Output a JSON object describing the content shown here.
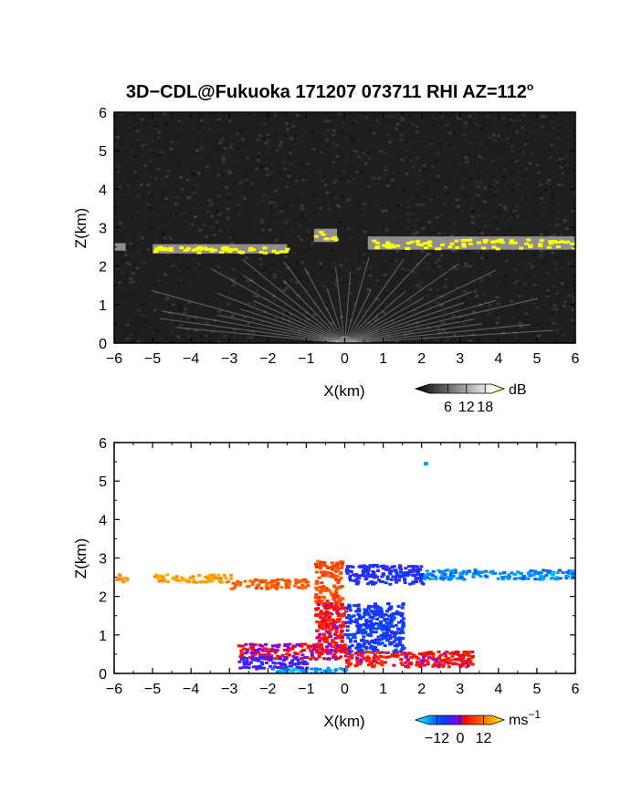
{
  "chart_data": [
    {
      "type": "heatmap",
      "title": "3D−CDL@Fukuoka 171207 073711 RHI AZ=112",
      "title_superscript": "o",
      "xlabel": "X(km)",
      "ylabel": "Z(km)",
      "xlim": [
        -6,
        6
      ],
      "ylim": [
        0,
        6
      ],
      "x_ticks": [
        "−6",
        "−5",
        "−4",
        "−3",
        "−2",
        "−1",
        "0",
        "1",
        "2",
        "3",
        "4",
        "5",
        "6"
      ],
      "y_ticks": [
        "0",
        "1",
        "2",
        "3",
        "4",
        "5",
        "6"
      ],
      "layers": [
        {
          "x_range": [
            -5.0,
            -1.5
          ],
          "z_center": 2.45,
          "thickness": 0.15,
          "intensity": "high"
        },
        {
          "x_range": [
            -0.8,
            -0.2
          ],
          "z_center": 2.8,
          "thickness": 0.25,
          "intensity": "high"
        },
        {
          "x_range": [
            0.6,
            6.0
          ],
          "z_center": 2.6,
          "thickness": 0.25,
          "intensity": "high"
        },
        {
          "x_range": [
            -6.0,
            -5.7
          ],
          "z_center": 2.5,
          "thickness": 0.1,
          "intensity": "medium"
        }
      ],
      "colorbar": {
        "unit": "dB",
        "ticks": [
          "6",
          "12",
          "18"
        ],
        "range": [
          0,
          20
        ],
        "colors": [
          "#000000",
          "#ffffff",
          "#ffff00"
        ]
      }
    },
    {
      "type": "heatmap",
      "xlabel": "X(km)",
      "ylabel": "Z(km)",
      "xlim": [
        -6,
        6
      ],
      "ylim": [
        0,
        6
      ],
      "x_ticks": [
        "−6",
        "−5",
        "−4",
        "−3",
        "−2",
        "−1",
        "0",
        "1",
        "2",
        "3",
        "4",
        "5",
        "6"
      ],
      "y_ticks": [
        "0",
        "1",
        "2",
        "3",
        "4",
        "5",
        "6"
      ],
      "layers": [
        {
          "x_range": [
            -6.0,
            -5.7
          ],
          "z_center": 2.5,
          "thickness": 0.2,
          "velocity": 9
        },
        {
          "x_range": [
            -5.0,
            -3.0
          ],
          "z_center": 2.5,
          "thickness": 0.2,
          "velocity": 10
        },
        {
          "x_range": [
            -3.0,
            -1.0
          ],
          "z_center": 2.35,
          "thickness": 0.25,
          "velocity": 6
        },
        {
          "x_range": [
            -0.8,
            -0.1
          ],
          "z_center": 2.4,
          "thickness": 1.1,
          "velocity": 5
        },
        {
          "x_range": [
            0.0,
            2.0
          ],
          "z_center": 2.6,
          "thickness": 0.5,
          "velocity": -6
        },
        {
          "x_range": [
            2.0,
            6.0
          ],
          "z_center": 2.6,
          "thickness": 0.25,
          "velocity": -11
        },
        {
          "x_range": [
            -0.8,
            0.0
          ],
          "z_center": 1.2,
          "thickness": 1.3,
          "velocity": 2
        },
        {
          "x_range": [
            0.0,
            1.5
          ],
          "z_center": 1.2,
          "thickness": 1.3,
          "velocity": -7
        },
        {
          "x_range": [
            -2.8,
            0.0
          ],
          "z_center": 0.6,
          "thickness": 0.4,
          "velocity": 1
        },
        {
          "x_range": [
            0.0,
            3.3
          ],
          "z_center": 0.4,
          "thickness": 0.4,
          "velocity": 2
        },
        {
          "x_range": [
            -2.8,
            -1.0
          ],
          "z_center": 0.3,
          "thickness": 0.3,
          "velocity": -4
        },
        {
          "x_range": [
            -2.0,
            0.0
          ],
          "z_center": 0.1,
          "thickness": 0.15,
          "velocity": -12
        }
      ],
      "isolated_points": [
        {
          "x": 2.1,
          "z": 5.45,
          "velocity": -12
        }
      ],
      "colorbar": {
        "unit": "ms",
        "unit_superscript": "−1",
        "ticks": [
          "−12",
          "0",
          "12"
        ],
        "range": [
          -16,
          16
        ],
        "colors": [
          "#00ffff",
          "#0000ff",
          "#ff0000",
          "#ffff00"
        ]
      }
    }
  ]
}
